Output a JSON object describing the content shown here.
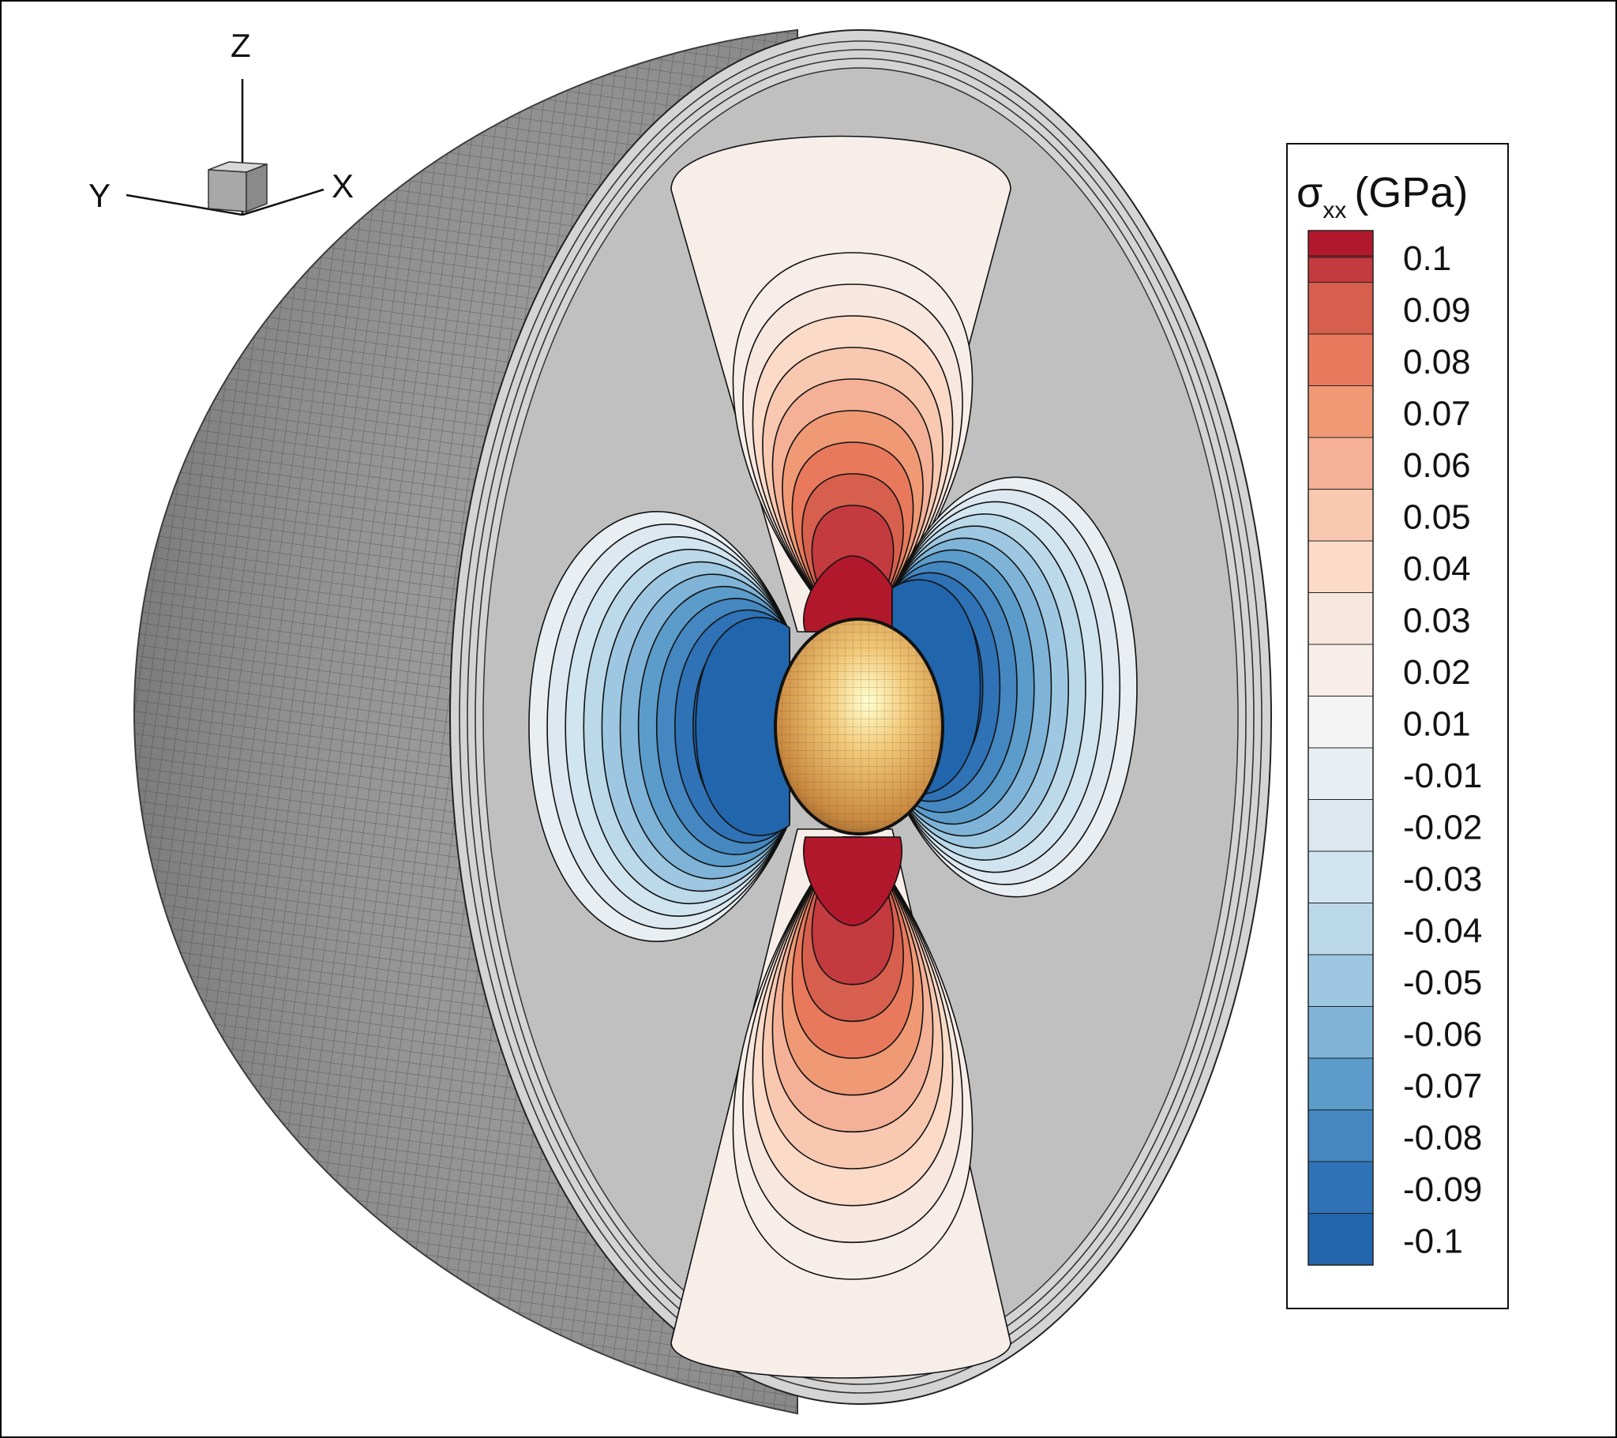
{
  "triad": {
    "z_label": "Z",
    "y_label": "Y",
    "x_label": "X"
  },
  "legend": {
    "symbol": "σ",
    "subscript": "xx",
    "unit": "(GPa)",
    "levels": [
      {
        "label": "0.1",
        "color": "#c33a3f"
      },
      {
        "label": "0.09",
        "color": "#d6604d"
      },
      {
        "label": "0.08",
        "color": "#e8795c"
      },
      {
        "label": "0.07",
        "color": "#f09a75"
      },
      {
        "label": "0.06",
        "color": "#f4b197"
      },
      {
        "label": "0.05",
        "color": "#f8c8b0"
      },
      {
        "label": "0.04",
        "color": "#fbdac8"
      },
      {
        "label": "0.03",
        "color": "#f7e7de"
      },
      {
        "label": "0.02",
        "color": "#f8eee9"
      },
      {
        "label": "0.01",
        "color": "#f4f4f4"
      },
      {
        "label": "-0.01",
        "color": "#e8eef2"
      },
      {
        "label": "-0.02",
        "color": "#dde8f1"
      },
      {
        "label": "-0.03",
        "color": "#d1e5f0"
      },
      {
        "label": "-0.04",
        "color": "#bcd9ea"
      },
      {
        "label": "-0.05",
        "color": "#9ec8e1"
      },
      {
        "label": "-0.06",
        "color": "#7fb4d8"
      },
      {
        "label": "-0.07",
        "color": "#5b9cca"
      },
      {
        "label": "-0.08",
        "color": "#4587c0"
      },
      {
        "label": "-0.09",
        "color": "#2f72b5"
      },
      {
        "label": "-0.1",
        "color": "#2265ac"
      }
    ],
    "top_color": "#b2182b"
  },
  "colors": {
    "background_face": "#c0c0c0",
    "shell": "#8a8a8a",
    "inclusion": "#e2a35a",
    "tension_max": "#b2182b",
    "compression_max": "#2166ac"
  }
}
